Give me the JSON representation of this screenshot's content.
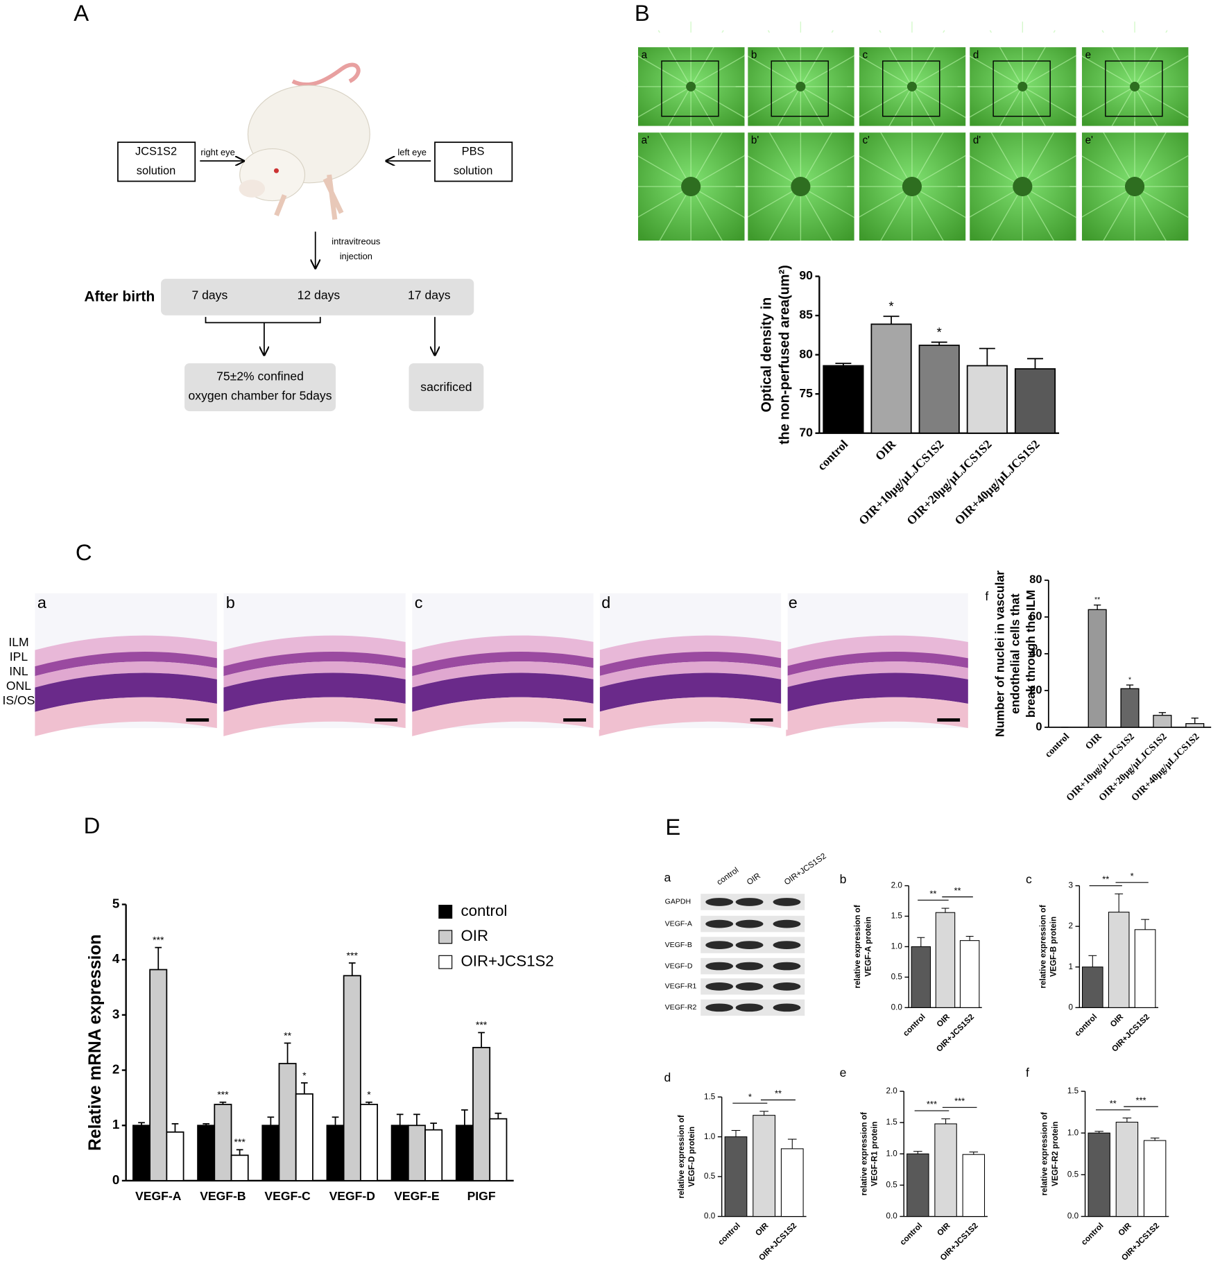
{
  "panel_labels": [
    "A",
    "B",
    "C",
    "D",
    "E"
  ],
  "diagram": {
    "jcs_box": [
      "JCS1S2",
      "solution"
    ],
    "right_eye": "right eye",
    "left_eye": "left eye",
    "pbs_box": [
      "PBS",
      "solution"
    ],
    "injection": [
      "intravitreous",
      "injection"
    ],
    "timeline_label": "After birth",
    "days": [
      "7 days",
      "12 days",
      "17 days"
    ],
    "oxygen_box": [
      "75±2% confined",
      "oxygen chamber for 5days"
    ],
    "end_box": "sacrificed"
  },
  "fundus_labels": [
    "a",
    "b",
    "c",
    "d",
    "e",
    "a'",
    "b'",
    "c'",
    "d'",
    "e'"
  ],
  "retina": {
    "labels": [
      "a",
      "b",
      "c",
      "d",
      "e"
    ],
    "layers": [
      "ILM",
      "IPL",
      "INL",
      "ONL",
      "IS/OS"
    ]
  },
  "blot": {
    "label": "a",
    "lanes": [
      "control",
      "OIR",
      "OIR+JCS1S2"
    ],
    "proteins": [
      "GAPDH",
      "VEGF-A",
      "VEGF-B",
      "VEGF-D",
      "VEGF-R1",
      "VEGF-R2"
    ]
  },
  "chart_data": [
    {
      "type": "bar",
      "ylabel": [
        "Optical density in",
        "the non-perfused area(um²)"
      ],
      "categories": [
        "control",
        "OIR",
        "OIR+10μg/μLJCS1S2",
        "OIR+20μg/μLJCS1S2",
        "OIR+40μg/μLJCS1S2"
      ],
      "values": [
        78.6,
        83.9,
        81.2,
        78.6,
        78.2
      ],
      "errors": [
        0.3,
        1.0,
        0.4,
        2.2,
        1.3
      ],
      "annotations": [
        null,
        "*",
        "*",
        null,
        null
      ],
      "colors": [
        "#000000",
        "#a6a6a6",
        "#7f7f7f",
        "#d9d9d9",
        "#595959"
      ],
      "ylim": [
        70,
        90
      ],
      "yticks": [
        70,
        75,
        80,
        85,
        90
      ]
    },
    {
      "type": "bar",
      "label": "f",
      "ylabel": [
        "Number of nuclei in vascular",
        "endothelial cells that",
        "break through the ILM"
      ],
      "categories": [
        "control",
        "OIR",
        "OIR+10μg/μLJCS1S2",
        "OIR+20μg/μLJCS1S2",
        "OIR+40μg/μLJCS1S2"
      ],
      "values": [
        0,
        64,
        21,
        6.5,
        2
      ],
      "errors": [
        0,
        2.5,
        2,
        1.5,
        3
      ],
      "annotations": [
        null,
        "**",
        "*",
        null,
        null
      ],
      "colors": [
        "#000000",
        "#999999",
        "#666666",
        "#bfbfbf",
        "#d9d9d9"
      ],
      "ylim": [
        0,
        80
      ],
      "yticks": [
        0,
        20,
        40,
        60,
        80
      ]
    },
    {
      "type": "bar",
      "ylabel": "Relative  mRNA expression",
      "categories": [
        "VEGF-A",
        "VEGF-B",
        "VEGF-C",
        "VEGF-D",
        "VEGF-E",
        "PIGF"
      ],
      "series": [
        {
          "name": "control",
          "color": "#000000",
          "values": [
            1.0,
            1.0,
            1.0,
            1.0,
            1.0,
            1.0
          ],
          "errors": [
            0.05,
            0.03,
            0.15,
            0.15,
            0.2,
            0.28
          ],
          "annotations": [
            null,
            null,
            null,
            null,
            null,
            null
          ]
        },
        {
          "name": "OIR",
          "color": "#cccccc",
          "values": [
            3.82,
            1.38,
            2.12,
            3.71,
            1.0,
            2.41
          ],
          "errors": [
            0.4,
            0.04,
            0.37,
            0.23,
            0.2,
            0.27
          ],
          "annotations": [
            "***",
            "***",
            "**",
            "***",
            null,
            "***"
          ]
        },
        {
          "name": "OIR+JCS1S2",
          "color": "#ffffff",
          "values": [
            0.88,
            0.46,
            1.57,
            1.38,
            0.92,
            1.12
          ],
          "errors": [
            0.15,
            0.1,
            0.2,
            0.04,
            0.12,
            0.1
          ],
          "annotations": [
            null,
            "***",
            "*",
            "*",
            null,
            null
          ]
        }
      ],
      "legend": "upper right",
      "ylim": [
        0,
        5
      ],
      "yticks": [
        0,
        1,
        2,
        3,
        4,
        5
      ]
    },
    {
      "type": "bar",
      "label": "b",
      "ylabel": [
        "relative expression of",
        "VEGF-A protein"
      ],
      "categories": [
        "control",
        "OIR",
        "OIR+JCS1S2"
      ],
      "values": [
        1.0,
        1.56,
        1.1
      ],
      "errors": [
        0.15,
        0.07,
        0.07
      ],
      "colors": [
        "#595959",
        "#d9d9d9",
        "#ffffff"
      ],
      "comparisons": [
        {
          "pair": [
            "control",
            "OIR"
          ],
          "label": "**"
        },
        {
          "pair": [
            "OIR",
            "OIR+JCS1S2"
          ],
          "label": "**"
        }
      ],
      "ylim": [
        0,
        2
      ],
      "yticks": [
        {
          "value": 0,
          "label": "0.0"
        },
        0.5,
        {
          "value": 1,
          "label": "1.0"
        },
        1.5,
        {
          "value": 2,
          "label": "2.0"
        }
      ]
    },
    {
      "type": "bar",
      "label": "c",
      "ylabel": [
        "relative expression of",
        "VEGF-B protein"
      ],
      "categories": [
        "control",
        "OIR",
        "OIR+JCS1S2"
      ],
      "values": [
        1.0,
        2.35,
        1.92
      ],
      "errors": [
        0.28,
        0.45,
        0.25
      ],
      "colors": [
        "#595959",
        "#d9d9d9",
        "#ffffff"
      ],
      "comparisons": [
        {
          "pair": [
            "control",
            "OIR"
          ],
          "label": "**"
        },
        {
          "pair": [
            "OIR",
            "OIR+JCS1S2"
          ],
          "label": "*"
        }
      ],
      "ylim": [
        0,
        3
      ],
      "yticks": [
        0,
        1,
        2,
        3
      ]
    },
    {
      "type": "bar",
      "label": "d",
      "ylabel": [
        "relative expression of",
        "VEGF-D protein"
      ],
      "categories": [
        "control",
        "OIR",
        "OIR+JCS1S2"
      ],
      "values": [
        1.0,
        1.27,
        0.85
      ],
      "errors": [
        0.08,
        0.05,
        0.12
      ],
      "colors": [
        "#595959",
        "#d9d9d9",
        "#ffffff"
      ],
      "comparisons": [
        {
          "pair": [
            "control",
            "OIR"
          ],
          "label": "*"
        },
        {
          "pair": [
            "OIR",
            "OIR+JCS1S2"
          ],
          "label": "**"
        }
      ],
      "ylim": [
        0,
        1.5
      ],
      "yticks": [
        {
          "value": 0,
          "label": "0.0"
        },
        0.5,
        {
          "value": 1,
          "label": "1.0"
        },
        1.5
      ]
    },
    {
      "type": "bar",
      "label": "e",
      "ylabel": [
        "relative expression of",
        "VEGF-R1 protein"
      ],
      "categories": [
        "control",
        "OIR",
        "OIR+JCS1S2"
      ],
      "values": [
        1.0,
        1.48,
        0.99
      ],
      "errors": [
        0.04,
        0.08,
        0.04
      ],
      "colors": [
        "#595959",
        "#d9d9d9",
        "#ffffff"
      ],
      "comparisons": [
        {
          "pair": [
            "control",
            "OIR"
          ],
          "label": "***"
        },
        {
          "pair": [
            "OIR",
            "OIR+JCS1S2"
          ],
          "label": "***"
        }
      ],
      "ylim": [
        0,
        2
      ],
      "yticks": [
        {
          "value": 0,
          "label": "0.0"
        },
        0.5,
        {
          "value": 1,
          "label": "1.0"
        },
        1.5,
        {
          "value": 2,
          "label": "2.0"
        }
      ]
    },
    {
      "type": "bar",
      "label": "f",
      "ylabel": [
        "relative expression of",
        "VEGF-R2 protein"
      ],
      "categories": [
        "control",
        "OIR",
        "OIR+JCS1S2"
      ],
      "values": [
        1.0,
        1.13,
        0.91
      ],
      "errors": [
        0.02,
        0.05,
        0.03
      ],
      "colors": [
        "#595959",
        "#d9d9d9",
        "#ffffff"
      ],
      "comparisons": [
        {
          "pair": [
            "control",
            "OIR"
          ],
          "label": "**"
        },
        {
          "pair": [
            "OIR",
            "OIR+JCS1S2"
          ],
          "label": "***"
        }
      ],
      "ylim": [
        0,
        1.5
      ],
      "yticks": [
        {
          "value": 0,
          "label": "0.0"
        },
        0.5,
        {
          "value": 1,
          "label": "1.0"
        },
        1.5
      ]
    }
  ]
}
